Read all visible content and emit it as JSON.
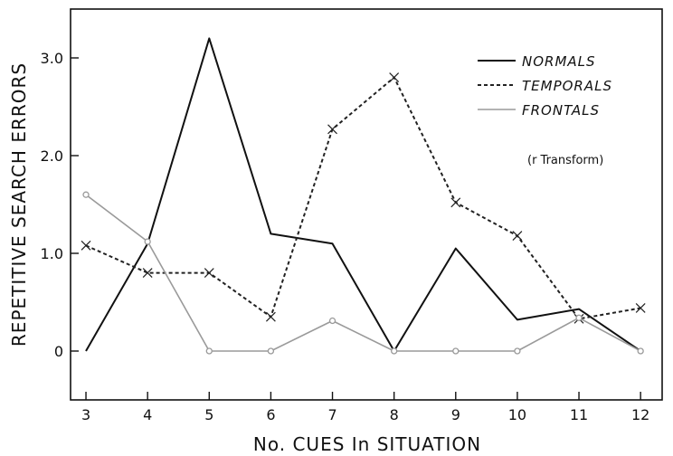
{
  "chart_data": {
    "type": "line",
    "xlabel": "No. CUES In SITUATION",
    "ylabel": "REPETITIVE SEARCH ERRORS",
    "x": [
      3,
      4,
      5,
      6,
      7,
      8,
      9,
      10,
      11,
      12
    ],
    "x_tick_labels": [
      "3",
      "4",
      "5",
      "6",
      "7",
      "8",
      "9",
      "10",
      "11",
      "12"
    ],
    "y_ticks": [
      0,
      1.0,
      2.0,
      3.0
    ],
    "y_tick_labels": [
      "0",
      "1.0",
      "2.0",
      "3.0"
    ],
    "xlim": [
      2.75,
      12.35
    ],
    "ylim": [
      -0.5,
      3.5
    ],
    "grid": false,
    "legend_position": "top-right",
    "note": "(r Transform)",
    "series": [
      {
        "name": "NORMALS",
        "color": "#111111",
        "dash": "solid",
        "marker": "none",
        "values": [
          0.0,
          1.1,
          3.2,
          1.2,
          1.1,
          0.0,
          1.05,
          0.32,
          0.43,
          0.0
        ]
      },
      {
        "name": "TEMPORALS",
        "color": "#222222",
        "dash": "dashed",
        "marker": "cross",
        "values": [
          1.08,
          0.8,
          0.8,
          0.35,
          2.27,
          2.8,
          1.52,
          1.18,
          0.33,
          0.44
        ]
      },
      {
        "name": "FRONTALS",
        "color": "#9a9a9a",
        "dash": "solid",
        "marker": "circle",
        "values": [
          1.6,
          1.12,
          0.0,
          0.0,
          0.31,
          0.0,
          0.0,
          0.0,
          0.34,
          0.0
        ]
      }
    ]
  }
}
